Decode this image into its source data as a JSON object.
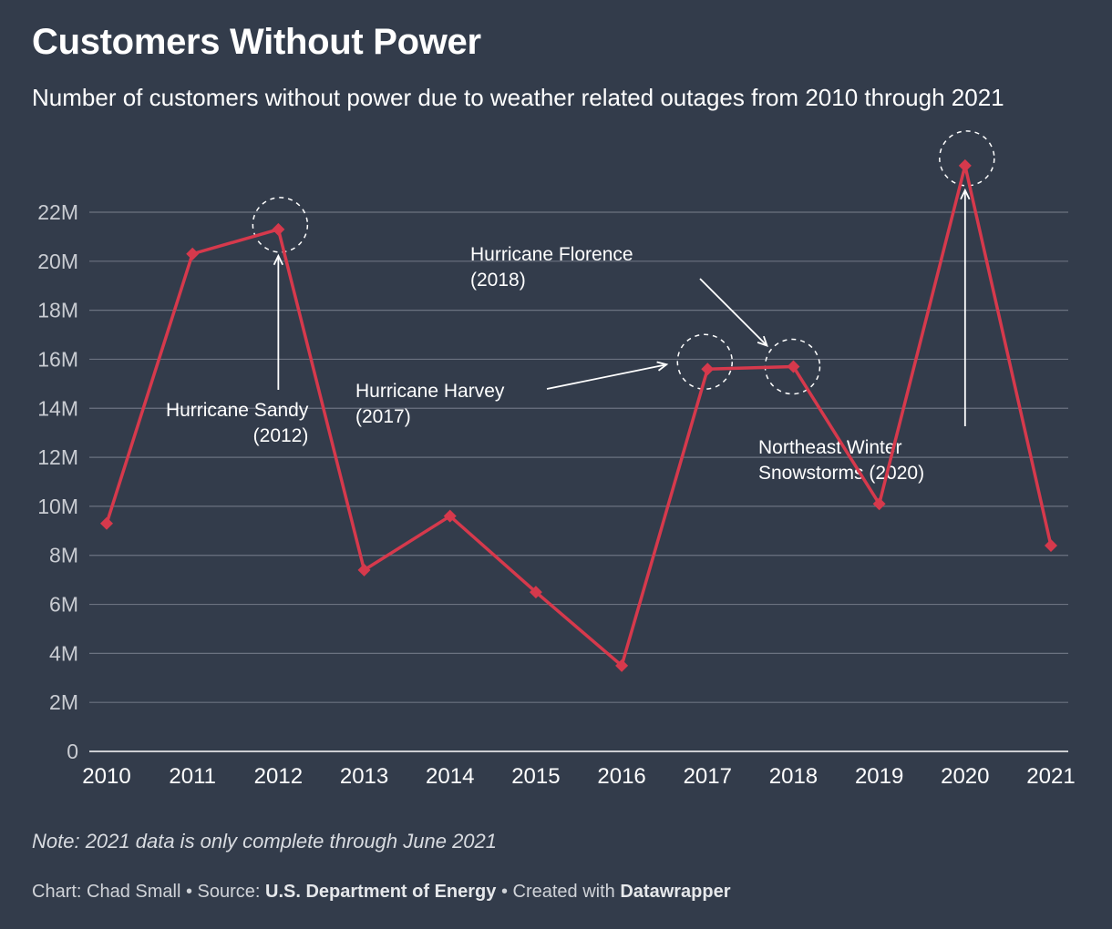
{
  "header": {
    "title": "Customers Without Power",
    "subtitle": "Number of customers without power due to weather related outages from 2010 through 2021"
  },
  "chart_data": {
    "type": "line",
    "title": "Customers Without Power",
    "subtitle": "Number of customers without power due to weather related outages from 2010 through 2021",
    "xlabel": "",
    "ylabel": "",
    "x": [
      "2010",
      "2011",
      "2012",
      "2013",
      "2014",
      "2015",
      "2016",
      "2017",
      "2018",
      "2019",
      "2020",
      "2021"
    ],
    "series": [
      {
        "values": [
          9.3,
          20.3,
          21.3,
          7.4,
          9.6,
          6.5,
          3.5,
          15.6,
          15.7,
          10.1,
          23.9,
          8.4
        ]
      }
    ],
    "ylim": [
      0,
      22
    ],
    "yticks": [
      0,
      2,
      4,
      6,
      8,
      10,
      12,
      14,
      16,
      18,
      20,
      22
    ],
    "ytick_labels": [
      "0",
      "2M",
      "4M",
      "6M",
      "8M",
      "10M",
      "12M",
      "14M",
      "16M",
      "18M",
      "20M",
      "22M"
    ],
    "grid": true,
    "line_color": "#d6394c",
    "annotations": [
      {
        "lines": [
          "Hurricane Sandy",
          "(2012)"
        ],
        "x": "2012",
        "y": 21.3
      },
      {
        "lines": [
          "Hurricane Harvey",
          "(2017)"
        ],
        "x": "2017",
        "y": 15.6
      },
      {
        "lines": [
          "Hurricane Florence",
          "(2018)"
        ],
        "x": "2018",
        "y": 15.7
      },
      {
        "lines": [
          "Northeast Winter",
          "Snowstorms  (2020)"
        ],
        "x": "2020",
        "y": 23.9
      }
    ]
  },
  "note": "Note: 2021 data is only complete through June 2021",
  "footer": {
    "chart_prefix": "Chart: Chad Small • Source: ",
    "source": "U.S. Department of Energy",
    "created_prefix": " • Created with ",
    "tool": "Datawrapper"
  }
}
